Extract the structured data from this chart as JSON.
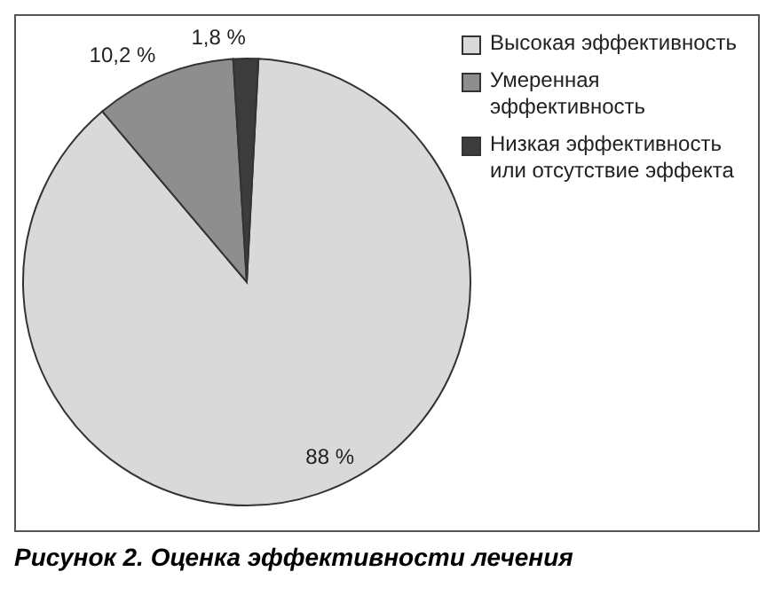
{
  "chart_data": {
    "type": "pie",
    "title": "Рисунок 2. Оценка эффективности лечения",
    "categories": [
      "Высокая эффективность",
      "Умеренная эффективность",
      "Низкая эффективность или отсутствие эффекта"
    ],
    "values": [
      88,
      10.2,
      1.8
    ],
    "colors": [
      "#d9d9d9",
      "#8e8e8e",
      "#3c3c3c"
    ],
    "value_labels": [
      "88 %",
      "10,2 %",
      "1,8 %"
    ],
    "legend": "top right"
  }
}
